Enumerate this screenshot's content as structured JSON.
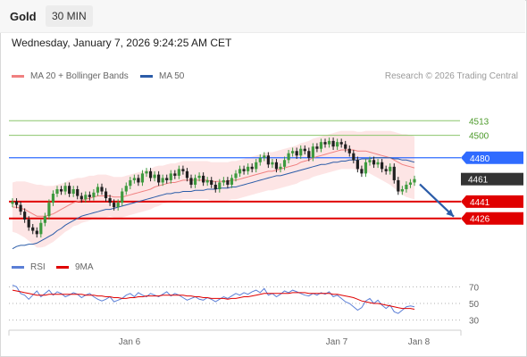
{
  "header": {
    "title": "Gold",
    "timeframe": "30 MIN"
  },
  "datetime": "Wednesday, January 7, 2026 9:24:25 AM CET",
  "legend": {
    "items": [
      {
        "label": "MA 20 + Bollinger Bands",
        "color": "#f08080"
      },
      {
        "label": "MA 50",
        "color": "#2b5ca8"
      }
    ],
    "copyright": "Research © 2026 Trading Central"
  },
  "rsi_legend": {
    "items": [
      {
        "label": "RSI",
        "color": "#5b7fd6"
      },
      {
        "label": "9MA",
        "color": "#e00000"
      }
    ]
  },
  "chart_data": [
    {
      "type": "candlestick",
      "y_range": [
        4390,
        4545
      ],
      "x_tick_labels": [
        "Jan 6",
        "Jan 7",
        "Jan 8"
      ],
      "levels": [
        {
          "value": 4513,
          "label": "4513",
          "style": "green-line"
        },
        {
          "value": 4500,
          "label": "4500",
          "style": "green-line"
        },
        {
          "value": 4480,
          "label": "4480",
          "style": "blue-badge",
          "color": "#2f6bff"
        },
        {
          "value": 4461,
          "label": "4461",
          "style": "current-price",
          "color": "#333333"
        },
        {
          "value": 4441,
          "label": "4441",
          "style": "red-badge",
          "color": "#e00000"
        },
        {
          "value": 4426,
          "label": "4426",
          "style": "red-badge",
          "color": "#e00000"
        }
      ],
      "close_series": [
        4441,
        4438,
        4432,
        4425,
        4418,
        4415,
        4412,
        4422,
        4428,
        4440,
        4448,
        4452,
        4450,
        4455,
        4448,
        4452,
        4446,
        4443,
        4447,
        4445,
        4449,
        4454,
        4450,
        4444,
        4440,
        4436,
        4440,
        4450,
        4455,
        4460,
        4462,
        4458,
        4466,
        4468,
        4462,
        4465,
        4458,
        4462,
        4460,
        4466,
        4464,
        4470,
        4468,
        4462,
        4456,
        4462,
        4464,
        4458,
        4460,
        4456,
        4452,
        4458,
        4460,
        4456,
        4462,
        4466,
        4470,
        4468,
        4472,
        4470,
        4476,
        4480,
        4482,
        4474,
        4476,
        4470,
        4472,
        4478,
        4484,
        4486,
        4482,
        4488,
        4486,
        4480,
        4490,
        4488,
        4494,
        4492,
        4495,
        4490,
        4494,
        4492,
        4488,
        4484,
        4478,
        4470,
        4466,
        4476,
        4478,
        4474,
        4476,
        4470,
        4468,
        4472,
        4460,
        4450,
        4452,
        4456,
        4458,
        4461
      ],
      "ma20_series": [
        4436,
        4436,
        4435,
        4434,
        4432,
        4430,
        4428,
        4428,
        4428,
        4429,
        4430,
        4432,
        4434,
        4436,
        4438,
        4440,
        4441,
        4442,
        4443,
        4444,
        4445,
        4446,
        4446,
        4446,
        4446,
        4445,
        4445,
        4445,
        4446,
        4447,
        4448,
        4449,
        4450,
        4451,
        4452,
        4454,
        4455,
        4456,
        4457,
        4458,
        4458,
        4459,
        4460,
        4460,
        4460,
        4460,
        4460,
        4460,
        4460,
        4459,
        4459,
        4459,
        4459,
        4459,
        4460,
        4460,
        4461,
        4462,
        4463,
        4464,
        4465,
        4466,
        4467,
        4468,
        4468,
        4469,
        4470,
        4471,
        4472,
        4473,
        4474,
        4476,
        4477,
        4478,
        4480,
        4481,
        4482,
        4483,
        4484,
        4485,
        4486,
        4487,
        4487,
        4487,
        4487,
        4486,
        4486,
        4486,
        4485,
        4484,
        4483,
        4482,
        4481,
        4480,
        4478,
        4476,
        4474,
        4473,
        4472,
        4471
      ],
      "ma50_series": [
        4399,
        4401,
        4402,
        4402,
        4403,
        4403,
        4404,
        4406,
        4408,
        4410,
        4412,
        4415,
        4417,
        4420,
        4422,
        4424,
        4426,
        4428,
        4429,
        4430,
        4431,
        4432,
        4433,
        4434,
        4434,
        4435,
        4436,
        4437,
        4438,
        4439,
        4440,
        4441,
        4442,
        4443,
        4444,
        4445,
        4446,
        4447,
        4448,
        4448,
        4449,
        4449,
        4450,
        4450,
        4450,
        4451,
        4451,
        4451,
        4452,
        4452,
        4452,
        4453,
        4453,
        4453,
        4454,
        4454,
        4455,
        4456,
        4457,
        4458,
        4459,
        4460,
        4461,
        4462,
        4463,
        4464,
        4464,
        4465,
        4466,
        4467,
        4468,
        4469,
        4470,
        4471,
        4472,
        4473,
        4474,
        4474,
        4475,
        4476,
        4476,
        4477,
        4477,
        4478,
        4478,
        4478,
        4479,
        4479,
        4479,
        4480,
        4480,
        4480,
        4480,
        4480,
        4479,
        4479,
        4478,
        4478,
        4477,
        4476
      ],
      "band_width": [
        22,
        23,
        24,
        25,
        26,
        27,
        28,
        28,
        27,
        26,
        25,
        24,
        23,
        22,
        22,
        21,
        21,
        20,
        20,
        20,
        19,
        19,
        19,
        19,
        18,
        18,
        18,
        18,
        18,
        18,
        18,
        18,
        18,
        18,
        18,
        18,
        18,
        17,
        17,
        17,
        17,
        17,
        17,
        17,
        17,
        17,
        17,
        17,
        17,
        17,
        17,
        17,
        17,
        17,
        17,
        17,
        17,
        17,
        17,
        17,
        17,
        17,
        17,
        17,
        17,
        17,
        17,
        17,
        17,
        17,
        17,
        17,
        17,
        17,
        17,
        17,
        17,
        17,
        17,
        17,
        17,
        17,
        17,
        17,
        17,
        17,
        17,
        18,
        19,
        20,
        21,
        22,
        23,
        24,
        25,
        26,
        27,
        28,
        28,
        28
      ],
      "projection": {
        "from": 4458,
        "to": 4426,
        "color": "#2b5ca8"
      }
    },
    {
      "type": "line",
      "y_range": [
        20,
        80
      ],
      "y_tick_labels": [
        "70",
        "50",
        "30"
      ],
      "y_tick_values": [
        70,
        50,
        30
      ],
      "series": [
        {
          "name": "RSI",
          "values": [
            72,
            70,
            62,
            60,
            55,
            60,
            65,
            58,
            62,
            66,
            60,
            64,
            62,
            58,
            60,
            63,
            61,
            57,
            60,
            62,
            58,
            55,
            53,
            55,
            58,
            52,
            54,
            56,
            60,
            62,
            58,
            63,
            60,
            58,
            62,
            60,
            58,
            61,
            64,
            59,
            62,
            60,
            57,
            54,
            56,
            58,
            55,
            54,
            57,
            55,
            52,
            55,
            58,
            56,
            59,
            62,
            60,
            63,
            61,
            64,
            66,
            63,
            68,
            60,
            62,
            58,
            61,
            65,
            63,
            66,
            64,
            62,
            60,
            59,
            62,
            60,
            63,
            61,
            64,
            58,
            60,
            56,
            52,
            50,
            46,
            42,
            45,
            53,
            56,
            50,
            54,
            48,
            44,
            48,
            40,
            38,
            42,
            46,
            47,
            46
          ],
          "color": "#5b7fd6"
        },
        {
          "name": "9MA",
          "values": [
            66,
            65,
            64,
            63,
            62,
            61,
            60,
            60,
            60,
            61,
            61,
            61,
            61,
            61,
            61,
            61,
            61,
            61,
            60,
            60,
            60,
            59,
            59,
            58,
            58,
            57,
            57,
            56,
            56,
            57,
            57,
            58,
            58,
            59,
            59,
            59,
            59,
            60,
            60,
            60,
            60,
            60,
            60,
            59,
            59,
            58,
            58,
            57,
            57,
            56,
            56,
            56,
            56,
            55,
            56,
            56,
            57,
            58,
            58,
            59,
            60,
            61,
            62,
            62,
            62,
            62,
            62,
            62,
            62,
            63,
            63,
            63,
            63,
            62,
            62,
            62,
            62,
            62,
            62,
            61,
            61,
            60,
            59,
            58,
            57,
            55,
            53,
            52,
            51,
            50,
            50,
            49,
            48,
            47,
            46,
            45,
            44,
            44,
            44,
            43
          ],
          "color": "#e00000"
        }
      ]
    }
  ]
}
